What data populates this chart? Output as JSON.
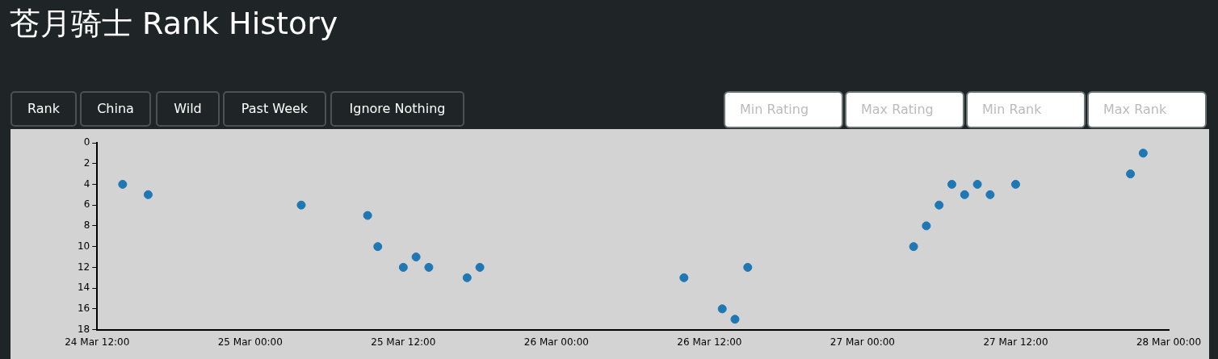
{
  "chart_data": {
    "type": "scatter",
    "title": "苍月骑士 Rank History",
    "annotations": [
      "Rank",
      "China",
      "Wild",
      "Past Week",
      "Ignore Nothing",
      "Min Rating",
      "Max Rating",
      "Min Rank",
      "Max Rank"
    ],
    "x": [
      "--03-24T14:00",
      "--03-24T16:00",
      "--03-25T04:00",
      "--03-25T09:12",
      "--03-25T10:00",
      "--03-25T12:00",
      "--03-25T13:00",
      "--03-25T14:00",
      "--03-25T17:00",
      "--03-25T18:00",
      "--03-26T10:00",
      "--03-26T13:00",
      "--03-26T14:00",
      "--03-26T15:00",
      "--03-27T04:00",
      "--03-27T05:00",
      "--03-27T06:00",
      "--03-27T07:00",
      "--03-27T08:00",
      "--03-27T09:00",
      "--03-27T10:00",
      "--03-27T12:00",
      "--03-27T21:00",
      "--03-27T22:00"
    ],
    "series": [
      {
        "color": "#1f77b4",
        "values": [
          4,
          5,
          6,
          7,
          10,
          12,
          11,
          12,
          13,
          12,
          13,
          16,
          17,
          12,
          10,
          8,
          6,
          4,
          5,
          4,
          5,
          4,
          3,
          1
        ]
      }
    ],
    "xlim": [
      "--03-24T12:00",
      "--03-28T00:00"
    ],
    "xticks": [
      {
        "value": "--03-24T12:00",
        "label": "24 Mar 12:00"
      },
      {
        "value": "--03-25T00:00",
        "label": "25 Mar 00:00"
      },
      {
        "value": "--03-25T12:00",
        "label": "25 Mar 12:00"
      },
      {
        "value": "--03-26T00:00",
        "label": "26 Mar 00:00"
      },
      {
        "value": "--03-26T12:00",
        "label": "26 Mar 12:00"
      },
      {
        "value": "--03-27T00:00",
        "label": "27 Mar 00:00"
      },
      {
        "value": "--03-27T12:00",
        "label": "27 Mar 12:00"
      },
      {
        "value": "--03-28T00:00",
        "label": "28 Mar 00:00"
      }
    ],
    "ylim": [
      18,
      0
    ],
    "yticks": [
      0,
      2,
      4,
      6,
      8,
      10,
      12,
      14,
      16,
      18
    ],
    "grid": false,
    "legend": false,
    "marker": "circle"
  }
}
